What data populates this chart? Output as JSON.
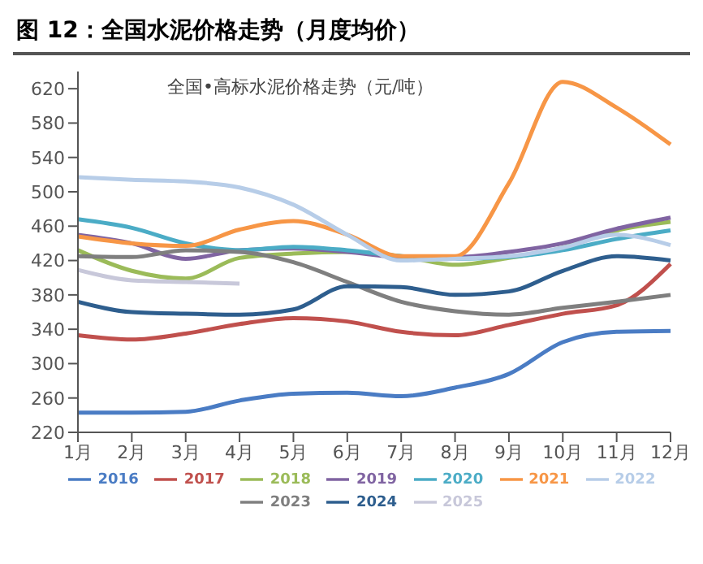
{
  "chart_data": {
    "type": "line",
    "title": "图 12：全国水泥价格走势（月度均价）",
    "annotations": [
      "全国•高标水泥价格走势（元/吨）"
    ],
    "categories": [
      "1月",
      "2月",
      "3月",
      "4月",
      "5月",
      "6月",
      "7月",
      "8月",
      "9月",
      "10月",
      "11月",
      "12月"
    ],
    "ylim": [
      220,
      640
    ],
    "yticks": [
      220,
      260,
      300,
      340,
      380,
      420,
      460,
      500,
      540,
      580,
      620
    ],
    "grid": false,
    "legend": "bottom",
    "marker": "none",
    "line_style": "solid",
    "series": [
      {
        "name": "2016",
        "color": "#4a7cc4",
        "values": [
          243,
          243,
          244,
          257,
          265,
          266,
          262,
          272,
          288,
          325,
          337,
          338
        ]
      },
      {
        "name": "2017",
        "color": "#c0504d",
        "values": [
          333,
          328,
          335,
          346,
          353,
          349,
          337,
          333,
          345,
          358,
          368,
          416
        ]
      },
      {
        "name": "2018",
        "color": "#9bbb59",
        "values": [
          432,
          408,
          399,
          423,
          428,
          430,
          425,
          415,
          423,
          435,
          455,
          465
        ]
      },
      {
        "name": "2019",
        "color": "#8064a2",
        "values": [
          450,
          440,
          422,
          432,
          434,
          430,
          424,
          424,
          430,
          440,
          457,
          470
        ]
      },
      {
        "name": "2020",
        "color": "#4bacc6",
        "values": [
          468,
          458,
          440,
          432,
          436,
          432,
          425,
          422,
          424,
          432,
          445,
          455
        ]
      },
      {
        "name": "2021",
        "color": "#f79646",
        "values": [
          448,
          440,
          437,
          456,
          466,
          450,
          425,
          425,
          510,
          628,
          598,
          555
        ]
      },
      {
        "name": "2022",
        "color": "#b7cde8",
        "values": [
          517,
          514,
          512,
          505,
          485,
          450,
          420,
          422,
          425,
          435,
          450,
          438
        ]
      },
      {
        "name": "2023",
        "color": "#7f7f7f",
        "values": [
          425,
          424,
          432,
          430,
          418,
          395,
          372,
          361,
          357,
          365,
          372,
          380
        ]
      },
      {
        "name": "2024",
        "color": "#2e5e8e",
        "values": [
          372,
          360,
          358,
          357,
          363,
          390,
          389,
          380,
          384,
          408,
          425,
          420
        ]
      },
      {
        "name": "2025",
        "color": "#c8c8da",
        "values": [
          409,
          397,
          395,
          393,
          null,
          null,
          null,
          null,
          null,
          null,
          null,
          null
        ]
      }
    ]
  }
}
